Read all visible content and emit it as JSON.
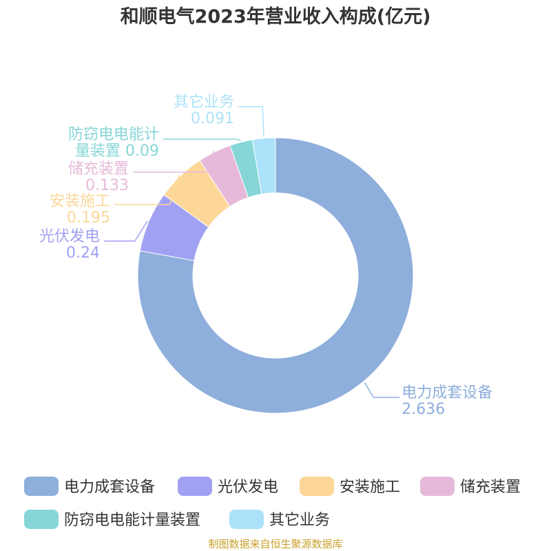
{
  "chart_data": {
    "type": "pie",
    "variant": "donut",
    "title": "和顺电气2023年营业收入构成(亿元)",
    "categories": [
      "电力成套设备",
      "光伏发电",
      "安装施工",
      "储充装置",
      "防窃电电能计量装置",
      "其它业务"
    ],
    "values": [
      2.636,
      0.24,
      0.195,
      0.133,
      0.09,
      0.091
    ],
    "value_labels": [
      "2.636",
      "0.24",
      "0.195",
      "0.133",
      "0.09",
      "0.091"
    ],
    "colors": [
      "#8eaedb",
      "#a1a1f3",
      "#fcd798",
      "#e6b9da",
      "#86d6d7",
      "#ace2f9"
    ],
    "legend_position": "bottom"
  },
  "source": "制图数据来自恒生聚源数据库"
}
